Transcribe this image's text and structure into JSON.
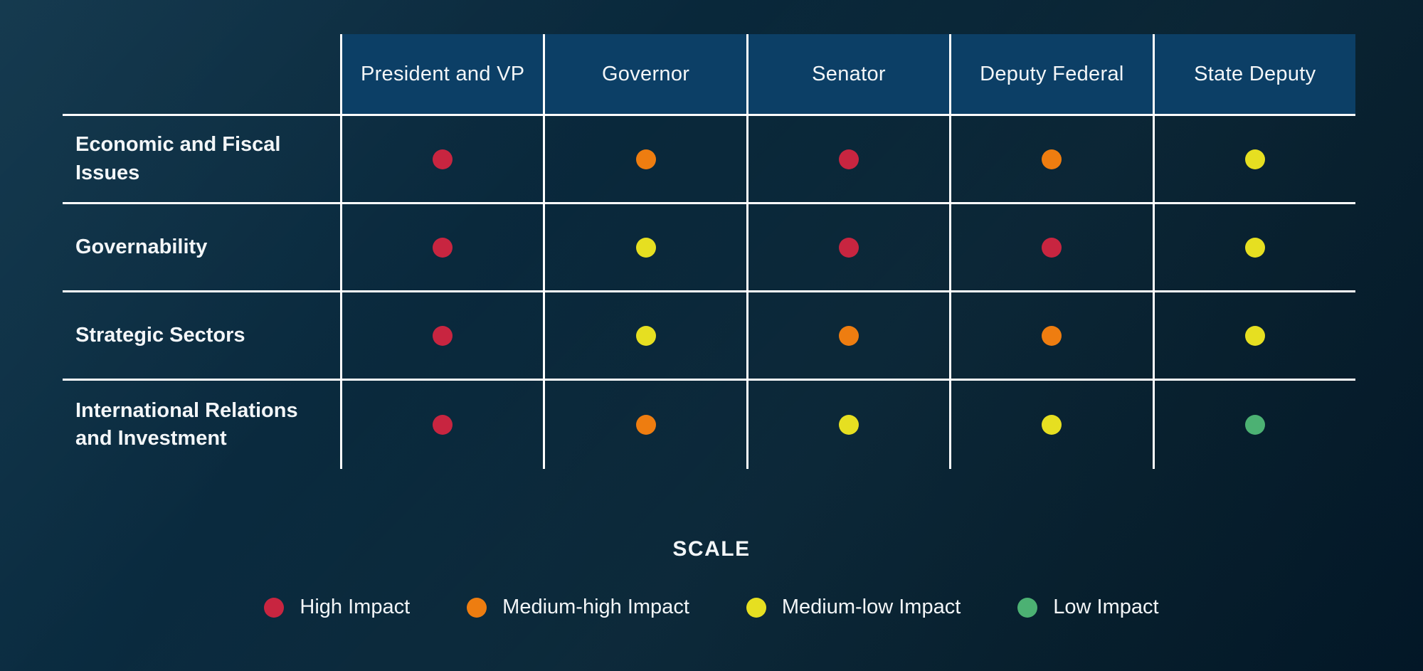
{
  "chart_data": {
    "type": "heatmap",
    "title": "",
    "columns": [
      "President and VP",
      "Governor",
      "Senator",
      "Deputy Federal",
      "State Deputy"
    ],
    "rows": [
      {
        "label": "Economic and Fiscal Issues",
        "values": [
          "High Impact",
          "Medium-high Impact",
          "High Impact",
          "Medium-high Impact",
          "Medium-low Impact"
        ],
        "numeric": [
          4,
          3,
          4,
          3,
          2
        ]
      },
      {
        "label": "Governability",
        "values": [
          "High Impact",
          "Medium-low Impact",
          "High Impact",
          "High Impact",
          "Medium-low Impact"
        ],
        "numeric": [
          4,
          2,
          4,
          4,
          2
        ]
      },
      {
        "label": "Strategic Sectors",
        "values": [
          "High Impact",
          "Medium-low Impact",
          "Medium-high Impact",
          "Medium-high Impact",
          "Medium-low Impact"
        ],
        "numeric": [
          4,
          2,
          3,
          3,
          2
        ]
      },
      {
        "label": "International Relations and Investment",
        "values": [
          "High Impact",
          "Medium-high Impact",
          "Medium-low Impact",
          "Medium-low Impact",
          "Low Impact"
        ],
        "numeric": [
          4,
          3,
          2,
          2,
          1
        ]
      }
    ],
    "scale_mapping": {
      "High Impact": 4,
      "Medium-high Impact": 3,
      "Medium-low Impact": 2,
      "Low Impact": 1
    },
    "legend_title": "SCALE",
    "legend_position": "bottom",
    "grid": true
  },
  "matrix": {
    "columns": [
      "President and VP",
      "Governor",
      "Senator",
      "Deputy Federal",
      "State Deputy"
    ],
    "rows": [
      {
        "label": "Economic and Fiscal Issues",
        "dots": [
          "high",
          "medium-high",
          "high",
          "medium-high",
          "medium-low"
        ]
      },
      {
        "label": "Governability",
        "dots": [
          "high",
          "medium-low",
          "high",
          "high",
          "medium-low"
        ]
      },
      {
        "label": "Strategic Sectors",
        "dots": [
          "high",
          "medium-low",
          "medium-high",
          "medium-high",
          "medium-low"
        ]
      },
      {
        "label": "International Relations and Investment",
        "dots": [
          "high",
          "medium-high",
          "medium-low",
          "medium-low",
          "low"
        ]
      }
    ]
  },
  "legend": {
    "title": "SCALE",
    "items": [
      {
        "label": "High Impact",
        "level": "high"
      },
      {
        "label": "Medium-high Impact",
        "level": "medium-high"
      },
      {
        "label": "Medium-low Impact",
        "level": "medium-low"
      },
      {
        "label": "Low Impact",
        "level": "low"
      }
    ]
  },
  "colors": {
    "high": "#c82540",
    "medium-high": "#ee7d10",
    "medium-low": "#e6df21",
    "low": "#4cb173",
    "header_bg": "#0c3f66",
    "grid_line": "#ffffff",
    "text": "#f3f6f8"
  }
}
